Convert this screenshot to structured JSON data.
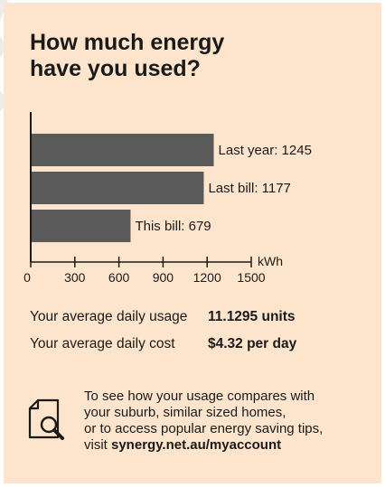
{
  "title": {
    "line1": "How much energy",
    "line2": "have you used?"
  },
  "chart_data": {
    "type": "bar",
    "orientation": "horizontal",
    "categories": [
      "Last year",
      "Last bill",
      "This bill"
    ],
    "values": [
      1245,
      1177,
      679
    ],
    "bar_labels": [
      "Last year: 1245",
      "Last bill: 1177",
      "This bill: 679"
    ],
    "xlim": [
      0,
      1500
    ],
    "xticks": [
      0,
      300,
      600,
      900,
      1200,
      1500
    ],
    "xunit": "kWh",
    "grid": false,
    "bar_color": "#5a5a5a"
  },
  "stats": [
    {
      "label": "Your average daily usage",
      "value": "11.1295 units"
    },
    {
      "label": "Your average daily cost",
      "value": "$4.32 per day"
    }
  ],
  "info": {
    "line1": "To see how your usage compares with",
    "line2": "your suburb, similar sized homes,",
    "line3": "or to access popular energy saving tips,",
    "line4_prefix": "visit ",
    "link": "synergy.net.au/myaccount"
  },
  "colors": {
    "panel_bg": "#fde4cc",
    "bar": "#5a5a5a",
    "text": "#1a1a1a"
  },
  "icons": {
    "info": "document-search-icon"
  }
}
